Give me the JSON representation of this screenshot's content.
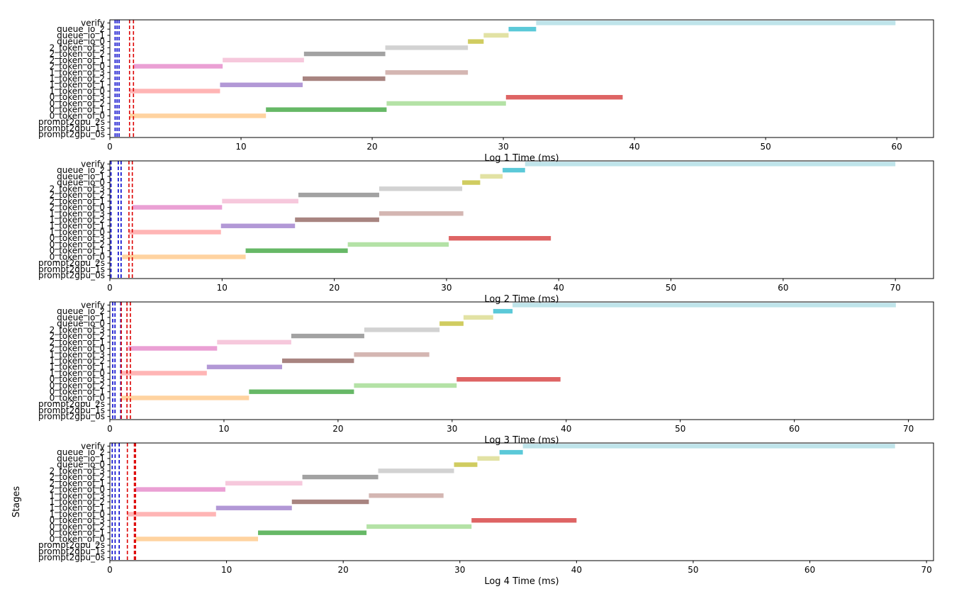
{
  "colors": {
    "axes": "#000000",
    "blue_line": "#0000cc",
    "red_line": "#dd0000",
    "stages": {
      "verify": "#bfe4ea",
      "queue_io_2": "#5bc9d8",
      "queue_io_1": "#e2e2a4",
      "queue_io_0": "#d0cc60",
      "2_token_of_3": "#d2d2d2",
      "2_token_of_2": "#a2a2a2",
      "2_token_of_1": "#f6c8dc",
      "2_token_of_0": "#eaa0d4",
      "1_token_of_3": "#d4b6b2",
      "1_token_of_2": "#a88480",
      "1_token_of_1": "#b298d6",
      "1_token_of_0": "#ffb5b5",
      "0_token_of_3": "#de6464",
      "0_token_of_2": "#b4e2a6",
      "0_token_of_1": "#66b866",
      "0_token_of_0": "#ffd3a0"
    }
  },
  "chart_data": [
    {
      "type": "gantt",
      "xlabel": "Log 1 Time (ms)",
      "ylabel": "",
      "xlim": [
        0,
        62.8
      ],
      "xticks": [
        0,
        10,
        20,
        30,
        40,
        50,
        60
      ],
      "categories": [
        "prompt2gpu_0s",
        "prompt2gpu_1s",
        "prompt2gpu_2s",
        "0_token_of_0",
        "0_token_of_1",
        "0_token_of_2",
        "0_token_of_3",
        "1_token_of_0",
        "1_token_of_1",
        "1_token_of_2",
        "1_token_of_3",
        "2_token_of_0",
        "2_token_of_1",
        "2_token_of_2",
        "2_token_of_3",
        "queue_io_0",
        "queue_io_1",
        "queue_io_2",
        "verify"
      ],
      "bars": [
        {
          "stage": "0_token_of_0",
          "start": 1.5,
          "end": 11.9
        },
        {
          "stage": "0_token_of_1",
          "start": 11.9,
          "end": 21.1
        },
        {
          "stage": "0_token_of_2",
          "start": 21.1,
          "end": 30.2
        },
        {
          "stage": "0_token_of_3",
          "start": 30.2,
          "end": 39.1
        },
        {
          "stage": "1_token_of_0",
          "start": 1.5,
          "end": 8.4
        },
        {
          "stage": "1_token_of_1",
          "start": 8.4,
          "end": 14.7
        },
        {
          "stage": "1_token_of_2",
          "start": 14.7,
          "end": 21.0
        },
        {
          "stage": "1_token_of_3",
          "start": 21.0,
          "end": 27.3
        },
        {
          "stage": "2_token_of_0",
          "start": 1.8,
          "end": 8.6
        },
        {
          "stage": "2_token_of_1",
          "start": 8.6,
          "end": 14.8
        },
        {
          "stage": "2_token_of_2",
          "start": 14.8,
          "end": 21.0
        },
        {
          "stage": "2_token_of_3",
          "start": 21.0,
          "end": 27.3
        },
        {
          "stage": "queue_io_0",
          "start": 27.3,
          "end": 28.5
        },
        {
          "stage": "queue_io_1",
          "start": 28.5,
          "end": 30.4
        },
        {
          "stage": "queue_io_2",
          "start": 30.4,
          "end": 32.5
        },
        {
          "stage": "verify",
          "start": 32.5,
          "end": 59.9
        }
      ],
      "blue_lines": [
        0.4,
        0.55,
        0.7
      ],
      "red_lines": [
        1.5,
        1.8
      ]
    },
    {
      "type": "gantt",
      "xlabel": "Log 2 Time (ms)",
      "ylabel": "",
      "xlim": [
        0,
        73.4
      ],
      "xticks": [
        0,
        10,
        20,
        30,
        40,
        50,
        60,
        70
      ],
      "categories": [
        "prompt2gpu_0s",
        "prompt2gpu_1s",
        "prompt2gpu_2s",
        "0_token_of_0",
        "0_token_of_1",
        "0_token_of_2",
        "0_token_of_3",
        "1_token_of_0",
        "1_token_of_1",
        "1_token_of_2",
        "1_token_of_3",
        "2_token_of_0",
        "2_token_of_1",
        "2_token_of_2",
        "2_token_of_3",
        "queue_io_0",
        "queue_io_1",
        "queue_io_2",
        "verify"
      ],
      "bars": [
        {
          "stage": "0_token_of_0",
          "start": 1.1,
          "end": 12.1
        },
        {
          "stage": "0_token_of_1",
          "start": 12.1,
          "end": 21.2
        },
        {
          "stage": "0_token_of_2",
          "start": 21.2,
          "end": 30.2
        },
        {
          "stage": "0_token_of_3",
          "start": 30.2,
          "end": 39.3
        },
        {
          "stage": "1_token_of_0",
          "start": 1.7,
          "end": 9.9
        },
        {
          "stage": "1_token_of_1",
          "start": 9.9,
          "end": 16.5
        },
        {
          "stage": "1_token_of_2",
          "start": 16.5,
          "end": 24.0
        },
        {
          "stage": "1_token_of_3",
          "start": 24.0,
          "end": 31.5
        },
        {
          "stage": "2_token_of_0",
          "start": 2.0,
          "end": 10.0
        },
        {
          "stage": "2_token_of_1",
          "start": 10.0,
          "end": 16.8
        },
        {
          "stage": "2_token_of_2",
          "start": 16.8,
          "end": 24.0
        },
        {
          "stage": "2_token_of_3",
          "start": 24.0,
          "end": 31.4
        },
        {
          "stage": "queue_io_0",
          "start": 31.4,
          "end": 33.0
        },
        {
          "stage": "queue_io_1",
          "start": 33.0,
          "end": 35.0
        },
        {
          "stage": "queue_io_2",
          "start": 35.0,
          "end": 37.0
        },
        {
          "stage": "verify",
          "start": 37.0,
          "end": 70.0
        }
      ],
      "blue_lines": [
        0.1,
        0.75,
        1.0
      ],
      "red_lines": [
        1.7,
        2.0
      ]
    },
    {
      "type": "gantt",
      "xlabel": "Log 3 Time (ms)",
      "ylabel": "",
      "xlim": [
        0,
        72.2
      ],
      "xticks": [
        0,
        10,
        20,
        30,
        40,
        50,
        60,
        70
      ],
      "categories": [
        "prompt2gpu_0s",
        "prompt2gpu_1s",
        "prompt2gpu_2s",
        "0_token_of_0",
        "0_token_of_1",
        "0_token_of_2",
        "0_token_of_3",
        "1_token_of_0",
        "1_token_of_1",
        "1_token_of_2",
        "1_token_of_3",
        "2_token_of_0",
        "2_token_of_1",
        "2_token_of_2",
        "2_token_of_3",
        "queue_io_0",
        "queue_io_1",
        "queue_io_2",
        "verify"
      ],
      "bars": [
        {
          "stage": "0_token_of_0",
          "start": 1.0,
          "end": 12.2
        },
        {
          "stage": "0_token_of_1",
          "start": 12.2,
          "end": 21.4
        },
        {
          "stage": "0_token_of_2",
          "start": 21.4,
          "end": 30.4
        },
        {
          "stage": "0_token_of_3",
          "start": 30.4,
          "end": 39.5
        },
        {
          "stage": "1_token_of_0",
          "start": 0.9,
          "end": 8.5
        },
        {
          "stage": "1_token_of_1",
          "start": 8.5,
          "end": 15.1
        },
        {
          "stage": "1_token_of_2",
          "start": 15.1,
          "end": 21.4
        },
        {
          "stage": "1_token_of_3",
          "start": 21.4,
          "end": 28.0
        },
        {
          "stage": "2_token_of_0",
          "start": 1.6,
          "end": 9.4
        },
        {
          "stage": "2_token_of_1",
          "start": 9.4,
          "end": 15.9
        },
        {
          "stage": "2_token_of_2",
          "start": 15.9,
          "end": 22.3
        },
        {
          "stage": "2_token_of_3",
          "start": 22.3,
          "end": 28.9
        },
        {
          "stage": "queue_io_0",
          "start": 28.9,
          "end": 31.0
        },
        {
          "stage": "queue_io_1",
          "start": 31.0,
          "end": 33.6
        },
        {
          "stage": "queue_io_2",
          "start": 33.6,
          "end": 35.3
        },
        {
          "stage": "verify",
          "start": 35.3,
          "end": 68.9
        }
      ],
      "blue_lines": [
        0.25,
        0.45,
        0.95
      ],
      "red_lines": [
        1.0,
        1.5,
        1.8
      ]
    },
    {
      "type": "gantt",
      "xlabel": "Log 4 Time (ms)",
      "ylabel": "Stages",
      "xlim": [
        0,
        70.6
      ],
      "xticks": [
        0,
        10,
        20,
        30,
        40,
        50,
        60,
        70
      ],
      "categories": [
        "prompt2gpu_0s",
        "prompt2gpu_1s",
        "prompt2gpu_2s",
        "0_token_of_0",
        "0_token_of_1",
        "0_token_of_2",
        "0_token_of_3",
        "1_token_of_0",
        "1_token_of_1",
        "1_token_of_2",
        "1_token_of_3",
        "2_token_of_0",
        "2_token_of_1",
        "2_token_of_2",
        "2_token_of_3",
        "queue_io_0",
        "queue_io_1",
        "queue_io_2",
        "verify"
      ],
      "bars": [
        {
          "stage": "0_token_of_0",
          "start": 2.2,
          "end": 12.7
        },
        {
          "stage": "0_token_of_1",
          "start": 12.7,
          "end": 22.0
        },
        {
          "stage": "0_token_of_2",
          "start": 22.0,
          "end": 31.0
        },
        {
          "stage": "0_token_of_3",
          "start": 31.0,
          "end": 40.0
        },
        {
          "stage": "1_token_of_0",
          "start": 1.5,
          "end": 9.1
        },
        {
          "stage": "1_token_of_1",
          "start": 9.1,
          "end": 15.6
        },
        {
          "stage": "1_token_of_2",
          "start": 15.6,
          "end": 22.2
        },
        {
          "stage": "1_token_of_3",
          "start": 22.2,
          "end": 28.6
        },
        {
          "stage": "2_token_of_0",
          "start": 2.2,
          "end": 9.9
        },
        {
          "stage": "2_token_of_1",
          "start": 9.9,
          "end": 16.5
        },
        {
          "stage": "2_token_of_2",
          "start": 16.5,
          "end": 23.0
        },
        {
          "stage": "2_token_of_3",
          "start": 23.0,
          "end": 29.5
        },
        {
          "stage": "queue_io_0",
          "start": 29.5,
          "end": 31.5
        },
        {
          "stage": "queue_io_1",
          "start": 31.5,
          "end": 33.4
        },
        {
          "stage": "queue_io_2",
          "start": 33.4,
          "end": 35.4
        },
        {
          "stage": "verify",
          "start": 35.4,
          "end": 67.3
        }
      ],
      "blue_lines": [
        0.2,
        0.45,
        0.8
      ],
      "red_lines": [
        1.5,
        2.1,
        2.2
      ]
    }
  ]
}
